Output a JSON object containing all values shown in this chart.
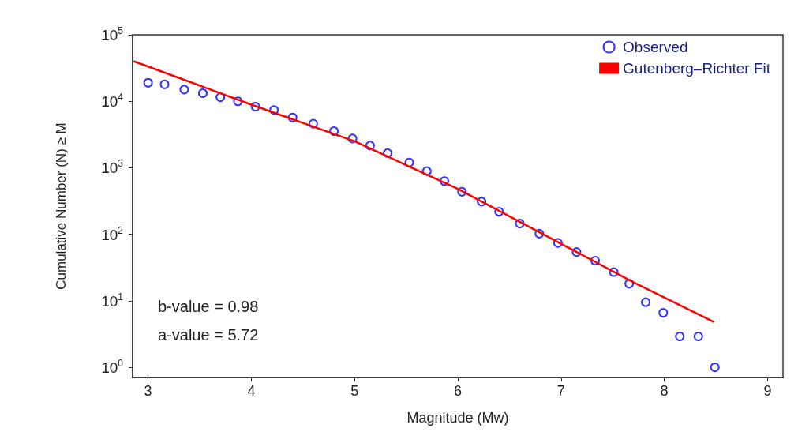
{
  "chart_data": {
    "type": "scatter",
    "xlabel": "Magnitude (Mw)",
    "ylabel": "Cumulative Number (N) ≥ M",
    "xlim": [
      2.85,
      9.15
    ],
    "xticks": [
      3,
      4,
      5,
      6,
      7,
      8,
      9
    ],
    "ylim": [
      0.7,
      100000
    ],
    "yticks": [
      {
        "value": 1,
        "label": "10$^{0}$"
      },
      {
        "value": 10,
        "label": "10$^{1}$"
      },
      {
        "value": 100,
        "label": "10$^{2}$"
      },
      {
        "value": 1000,
        "label": "10$^{3}$"
      },
      {
        "value": 10000,
        "label": "10$^{4}$"
      },
      {
        "value": 100000,
        "label": "10$^{5}$"
      }
    ],
    "log": "y",
    "grid": false,
    "legend": "top right",
    "marker": "circle",
    "series": [
      {
        "name": "Observed",
        "color": "#0000ff",
        "x": [
          3.0,
          3.16,
          3.35,
          3.53,
          3.7,
          3.87,
          4.04,
          4.22,
          4.4,
          4.6,
          4.8,
          4.98,
          5.15,
          5.32,
          5.53,
          5.7,
          5.87,
          6.04,
          6.23,
          6.4,
          6.6,
          6.79,
          6.97,
          7.15,
          7.33,
          7.51,
          7.66,
          7.82,
          7.99,
          8.15,
          8.33,
          8.49
        ],
        "values": [
          19000,
          18000,
          15000,
          13200,
          11500,
          10000,
          8300,
          7400,
          5700,
          4600,
          3550,
          2750,
          2150,
          1660,
          1200,
          890,
          630,
          435,
          310,
          218,
          145,
          102,
          74,
          54,
          40,
          27,
          18,
          9.5,
          6.6,
          2.9,
          2.9,
          1
        ]
      },
      {
        "name": "Gutenberg–Richter Fit",
        "type": "line",
        "color": "#ff0000",
        "marker": "none",
        "line_style": "solid",
        "x": [
          2.86,
          4.0,
          5.0,
          6.0,
          7.0,
          7.7,
          8.48
        ],
        "values": [
          40000,
          8900,
          2500,
          480,
          72,
          19,
          4.8
        ]
      }
    ],
    "annotations": [
      "b-value = 0.98",
      "a-value = 5.72"
    ]
  }
}
